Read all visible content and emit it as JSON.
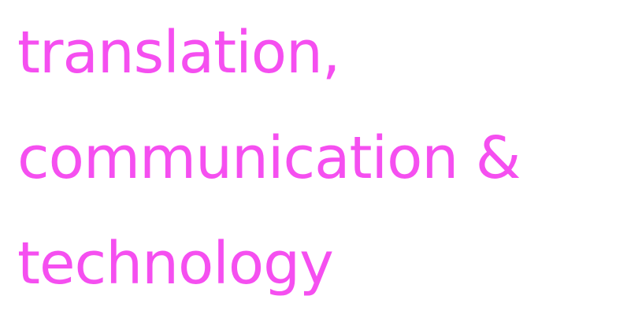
{
  "headline": {
    "line1": "translation,",
    "line2": "communication &",
    "line3": "technology"
  },
  "colors": {
    "text": "#f54ff0",
    "background": "#ffffff"
  }
}
